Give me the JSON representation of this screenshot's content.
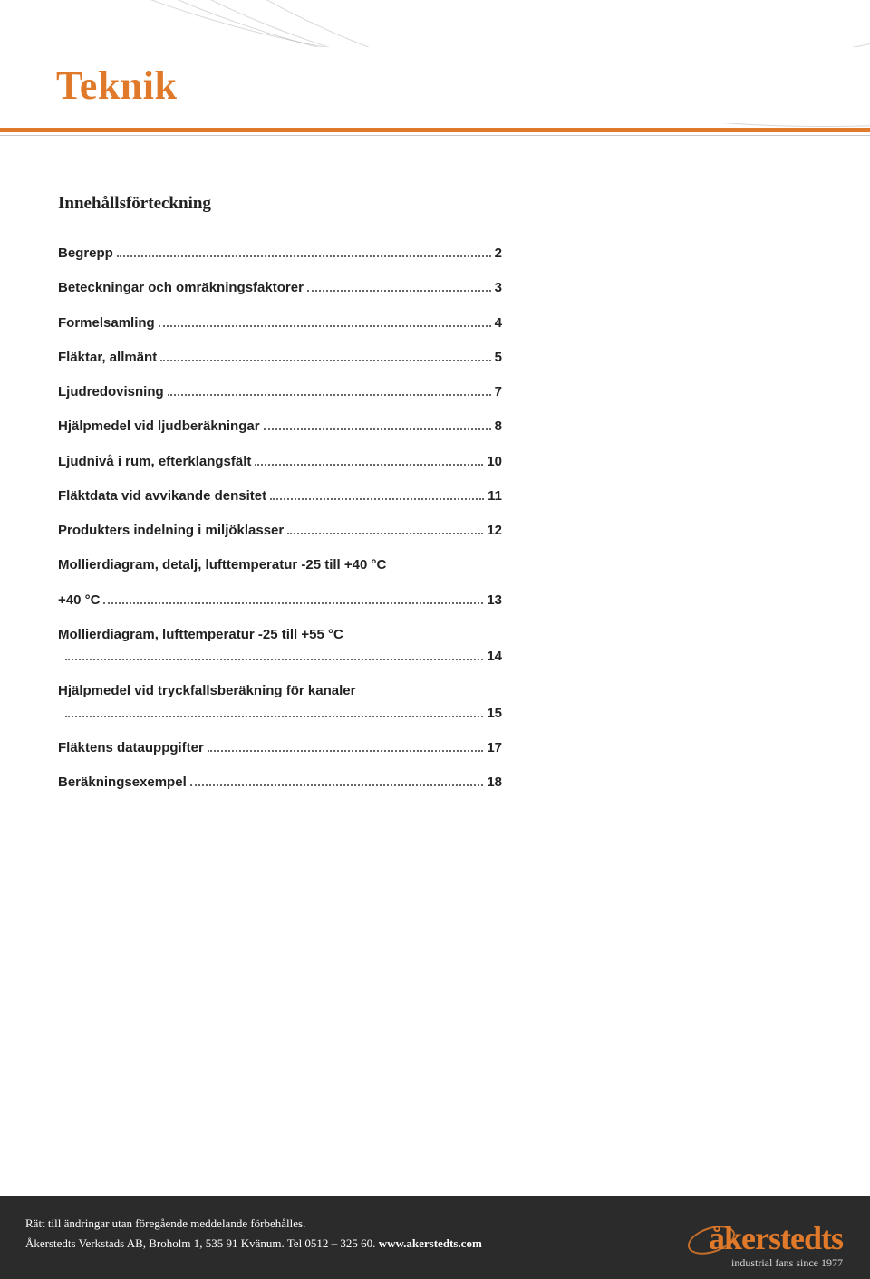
{
  "colors": {
    "accent": "#e07a2a",
    "footer_bg": "#2b2b2b",
    "text": "#1a1a1a",
    "arc": "rgba(140,140,140,0.35)"
  },
  "header": {
    "title": "Teknik"
  },
  "toc": {
    "heading": "Innehållsförteckning",
    "items": [
      {
        "label": "Begrepp",
        "page": "2",
        "wrap": false
      },
      {
        "label": "Beteckningar och omräkningsfaktorer",
        "page": "3",
        "wrap": false
      },
      {
        "label": "Formelsamling",
        "page": "4",
        "wrap": false
      },
      {
        "label": "Fläktar, allmänt",
        "page": "5",
        "wrap": false
      },
      {
        "label": "Ljudredovisning",
        "page": "7",
        "wrap": false
      },
      {
        "label": "Hjälpmedel vid ljudberäkningar",
        "page": "8",
        "wrap": false
      },
      {
        "label": "Ljudnivå i rum, efterklangsfält",
        "page": "10",
        "wrap": false
      },
      {
        "label": "Fläktdata vid avvikande densitet",
        "page": "11",
        "wrap": false
      },
      {
        "label": "Produkters indelning i miljöklasser",
        "page": "12",
        "wrap": false
      },
      {
        "label": "Mollierdiagram, detalj, lufttemperatur -25 till +40 °C",
        "page": "13",
        "wrap": true,
        "wrap_tail": "+40 °C"
      },
      {
        "label": "Mollierdiagram, lufttemperatur -25 till +55 °C",
        "page": "14",
        "wrap": true,
        "wrap_tail": ""
      },
      {
        "label": "Hjälpmedel vid tryckfallsberäkning för kanaler",
        "page": "15",
        "wrap": true,
        "wrap_tail": ""
      },
      {
        "label": "Fläktens datauppgifter",
        "page": "17",
        "wrap": false
      },
      {
        "label": "Beräkningsexempel",
        "page": "18",
        "wrap": false
      }
    ]
  },
  "footer": {
    "line1": "Rätt till ändringar utan föregående meddelande förbehålles.",
    "line2_prefix": "Åkerstedts Verkstads AB, Broholm 1, 535 91 Kvänum. Tel 0512 – 325 60. ",
    "line2_link": "www.akerstedts.com",
    "logo_text": "åkerstedts",
    "tagline": "industrial fans since 1977"
  }
}
